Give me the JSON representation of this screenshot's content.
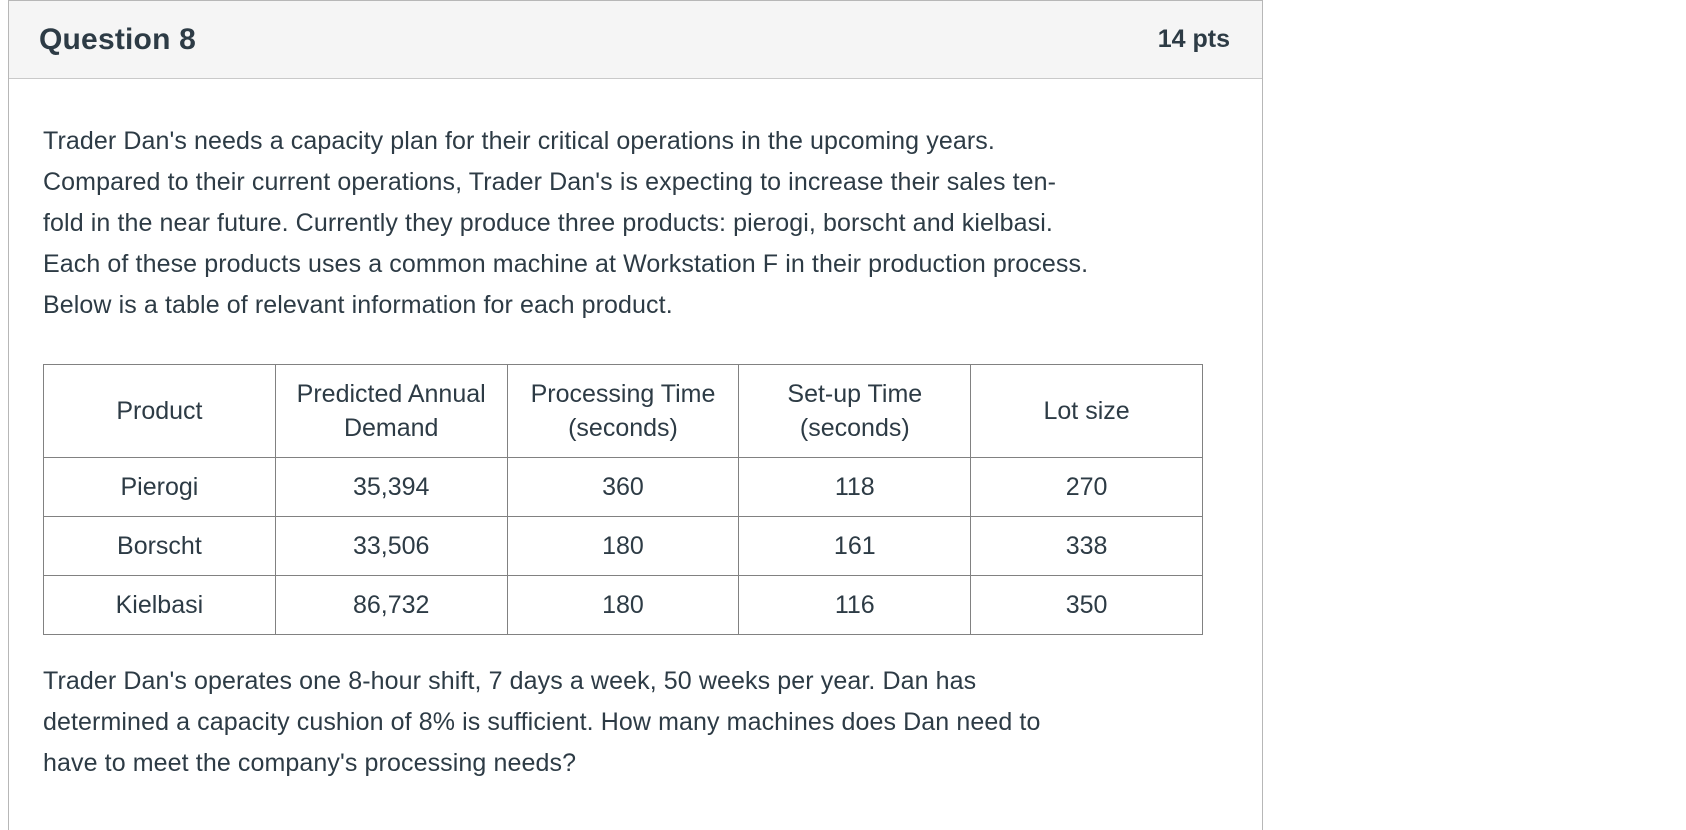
{
  "colors": {
    "text": "#2d3b45",
    "header_bg": "#f5f5f5",
    "panel_border": "#b7b7b7",
    "header_divider": "#c9c9c9",
    "table_border": "#818181"
  },
  "header": {
    "title": "Question 8",
    "points": "14 pts"
  },
  "question": {
    "intro_lines": [
      "Trader Dan's needs a capacity plan for their critical operations in the upcoming years.",
      "Compared to their current operations, Trader Dan's is expecting to increase their sales ten-",
      "fold in the near future. Currently they produce three products: pierogi, borscht and kielbasi.",
      "Each of these products uses a common machine at Workstation F in their production process.",
      "Below is a table of relevant information for each product."
    ],
    "table": {
      "columns": [
        "Product",
        "Predicted Annual\nDemand",
        "Processing Time\n(seconds)",
        "Set-up Time\n(seconds)",
        "Lot size"
      ],
      "rows": [
        [
          "Pierogi",
          "35,394",
          "360",
          "118",
          "270"
        ],
        [
          "Borscht",
          "33,506",
          "180",
          "161",
          "338"
        ],
        [
          "Kielbasi",
          "86,732",
          "180",
          "116",
          "350"
        ]
      ]
    },
    "outro_lines": [
      "Trader Dan's operates one 8-hour shift, 7 days a week, 50 weeks per year. Dan has",
      "determined a capacity cushion of 8% is sufficient. How many machines does Dan need to",
      "have to meet the company's processing needs?"
    ]
  }
}
